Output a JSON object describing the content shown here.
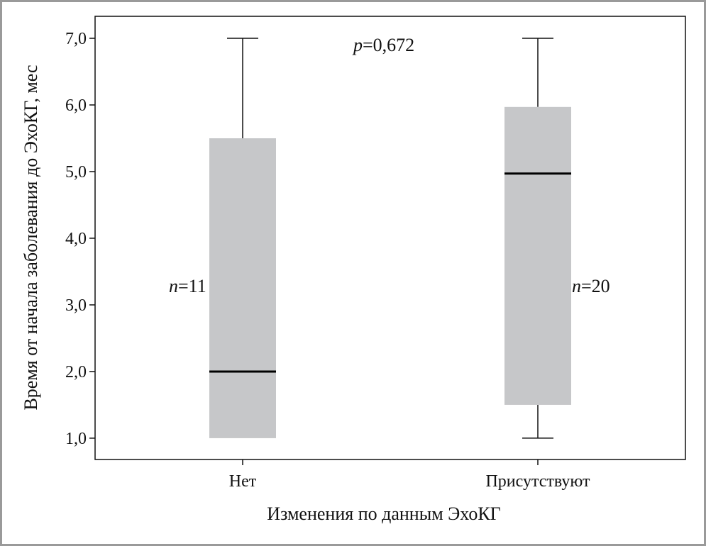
{
  "chart_data": {
    "type": "boxplot",
    "title": "",
    "xlabel": "Изменения по данным ЭхоКГ",
    "ylabel": "Время от начала заболевания до ЭхоКГ, мес",
    "ylim": [
      0.68,
      7.33
    ],
    "yticks": [
      1,
      2,
      3,
      4,
      5,
      6,
      7
    ],
    "ytick_labels": [
      "1,0",
      "2,0",
      "3,0",
      "4,0",
      "5,0",
      "6,0",
      "7,0"
    ],
    "grid": false,
    "legend": "none",
    "box_color": "#c6c7c9",
    "categories": [
      "Нет",
      "Присутствуют"
    ],
    "boxes": [
      {
        "category": "Нет",
        "min": 1.0,
        "q1": 1.0,
        "median": 2.0,
        "q3": 5.5,
        "max": 7.0,
        "n_symbol": "n",
        "n_text": "=11"
      },
      {
        "category": "Присутствуют",
        "min": 1.0,
        "q1": 1.5,
        "median": 4.97,
        "q3": 5.97,
        "max": 7.0,
        "n_symbol": "n",
        "n_text": "=20"
      }
    ],
    "p_annotation": {
      "symbol": "p",
      "text": "=0,672"
    }
  }
}
